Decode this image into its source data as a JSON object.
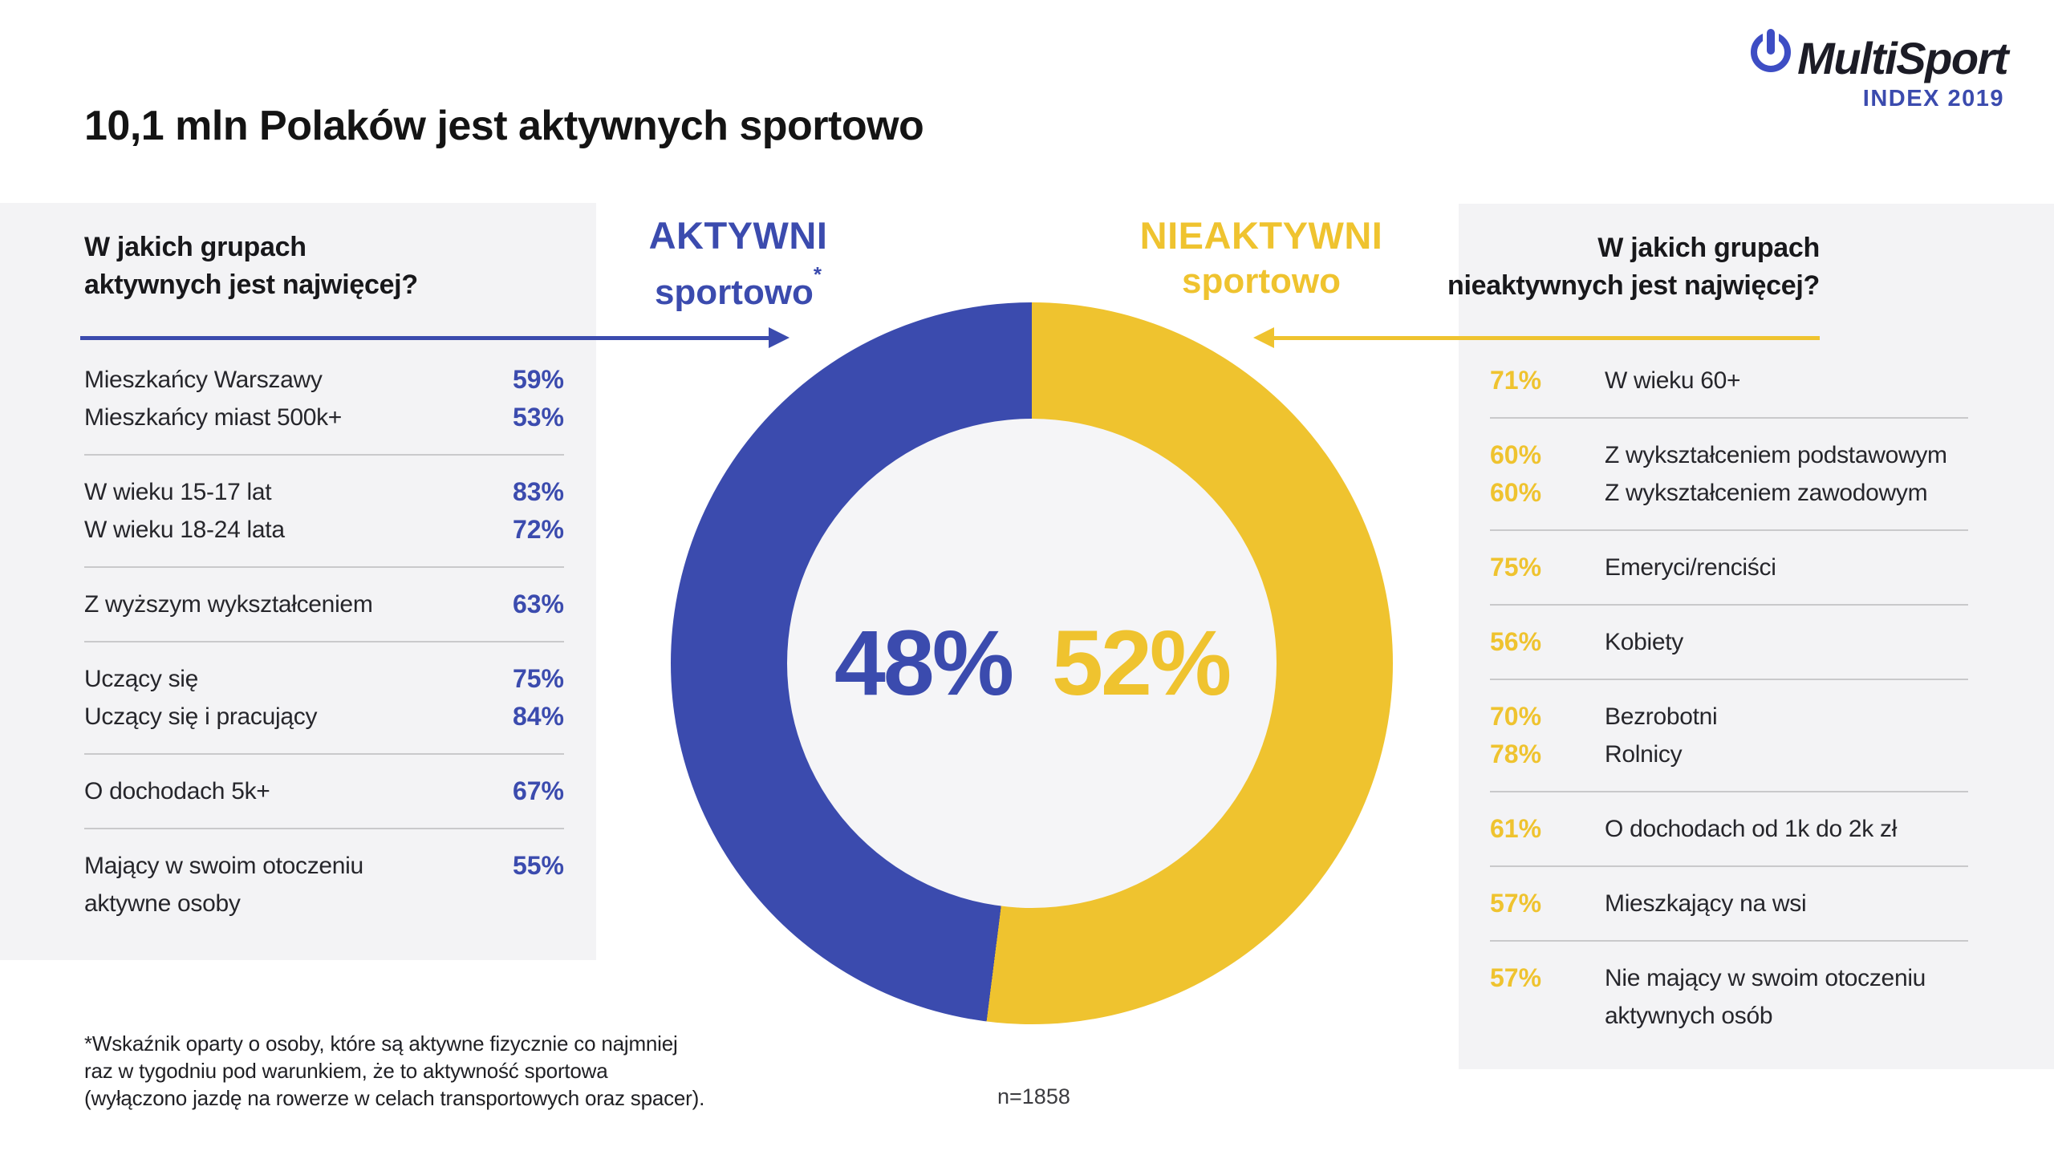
{
  "page": {
    "title": "10,1 mln Polaków jest aktywnych sportowo",
    "footnote_lines": [
      "*Wskaźnik oparty o osoby, które są aktywne fizycznie co najmniej",
      "raz w tygodniu pod warunkiem, że to aktywność sportowa",
      "(wyłączono jazdę na rowerze w celach transportowych oraz spacer)."
    ]
  },
  "logo": {
    "brand": "MultiSport",
    "edition": "INDEX 2019",
    "icon": "power-ring-icon"
  },
  "colors": {
    "blue": "#3B4BAE",
    "yellow": "#EFC32F",
    "panel_bg": "#F3F3F5",
    "inner_circle_bg": "#F5F5F7",
    "divider": "#C9C9CB",
    "text_dark": "#1A1A1A"
  },
  "chart_data": {
    "type": "pie",
    "donut": true,
    "title": "10,1 mln Polaków jest aktywnych sportowo",
    "sample": "n=1858",
    "legend_position": "top",
    "slices": [
      {
        "name": "AKTYWNI",
        "sublabel": "sportowo",
        "marker": "*",
        "value": 48,
        "pct_label": "48%",
        "color": "#3B4BAE"
      },
      {
        "name": "NIEAKTYWNI",
        "sublabel": "sportowo",
        "marker": "",
        "value": 52,
        "pct_label": "52%",
        "color": "#EFC32F"
      }
    ],
    "active_groups": {
      "header_line1": "W jakich grupach",
      "header_line2": "aktywnych jest najwięcej?",
      "items": [
        {
          "label": "Mieszkańcy Warszawy",
          "value": 59,
          "value_label": "59%"
        },
        {
          "label": "Mieszkańcy miast 500k+",
          "value": 53,
          "value_label": "53%"
        },
        {
          "label": "W wieku 15-17 lat",
          "value": 83,
          "value_label": "83%"
        },
        {
          "label": "W wieku 18-24 lata",
          "value": 72,
          "value_label": "72%"
        },
        {
          "label": "Z wyższym wykształceniem",
          "value": 63,
          "value_label": "63%"
        },
        {
          "label": "Uczący się",
          "value": 75,
          "value_label": "75%"
        },
        {
          "label": "Uczący się i pracujący",
          "value": 84,
          "value_label": "84%"
        },
        {
          "label": "O dochodach 5k+",
          "value": 67,
          "value_label": "67%"
        },
        {
          "label": "Mający w swoim otoczeniu aktywne osoby",
          "value": 55,
          "value_label": "55%"
        }
      ]
    },
    "inactive_groups": {
      "header_line1": "W jakich grupach",
      "header_line2": "nieaktywnych jest najwięcej?",
      "items": [
        {
          "label": "W wieku 60+",
          "value": 71,
          "value_label": "71%"
        },
        {
          "label": "Z wykształceniem podstawowym",
          "value": 60,
          "value_label": "60%"
        },
        {
          "label": "Z wykształceniem zawodowym",
          "value": 60,
          "value_label": "60%"
        },
        {
          "label": "Emeryci/renciści",
          "value": 75,
          "value_label": "75%"
        },
        {
          "label": "Kobiety",
          "value": 56,
          "value_label": "56%"
        },
        {
          "label": "Bezrobotni",
          "value": 70,
          "value_label": "70%"
        },
        {
          "label": "Rolnicy",
          "value": 78,
          "value_label": "78%"
        },
        {
          "label": "O dochodach od 1k do 2k zł",
          "value": 61,
          "value_label": "61%"
        },
        {
          "label": "Mieszkający na wsi",
          "value": 57,
          "value_label": "57%"
        },
        {
          "label": "Nie mający w swoim otoczeniu aktywnych osób",
          "value": 57,
          "value_label": "57%"
        }
      ]
    }
  }
}
